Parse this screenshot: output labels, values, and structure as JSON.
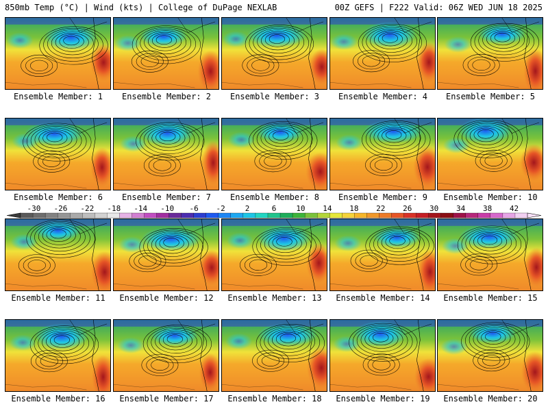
{
  "header": {
    "left": "850mb Temp (°C) | Wind (kts) | College of DuPage NEXLAB",
    "right": "00Z GEFS | F222 Valid: 06Z WED JUN 18 2025"
  },
  "panels": [
    {
      "caption": "Ensemble Member: 1"
    },
    {
      "caption": "Ensemble Member: 2"
    },
    {
      "caption": "Ensemble Member: 3"
    },
    {
      "caption": "Ensemble Member: 4"
    },
    {
      "caption": "Ensemble Member: 5"
    },
    {
      "caption": "Ensemble Member: 6"
    },
    {
      "caption": "Ensemble Member: 7"
    },
    {
      "caption": "Ensemble Member: 8"
    },
    {
      "caption": "Ensemble Member: 9"
    },
    {
      "caption": "Ensemble Member: 10"
    },
    {
      "caption": "Ensemble Member: 11"
    },
    {
      "caption": "Ensemble Member: 12"
    },
    {
      "caption": "Ensemble Member: 13"
    },
    {
      "caption": "Ensemble Member: 14"
    },
    {
      "caption": "Ensemble Member: 15"
    },
    {
      "caption": "Ensemble Member: 16"
    },
    {
      "caption": "Ensemble Member: 17"
    },
    {
      "caption": "Ensemble Member: 18"
    },
    {
      "caption": "Ensemble Member: 19"
    },
    {
      "caption": "Ensemble Member: 20"
    }
  ],
  "colorbar": {
    "labels": [
      "-30",
      "-26",
      "-22",
      "-18",
      "-14",
      "-10",
      "-6",
      "-2",
      "2",
      "6",
      "10",
      "14",
      "18",
      "22",
      "26",
      "30",
      "34",
      "38",
      "42"
    ],
    "colors": [
      "#5a5a5a",
      "#6e6e6e",
      "#828282",
      "#969696",
      "#aaaaaa",
      "#bebebe",
      "#d2d2d2",
      "#e8e8e8",
      "#e6b3e6",
      "#d27fd2",
      "#c14ec1",
      "#a12ea1",
      "#6a2a9a",
      "#4b2cb0",
      "#2d3ed0",
      "#1e5af0",
      "#1d86f5",
      "#1ea8f2",
      "#1ec6e6",
      "#22d6c2",
      "#20c48c",
      "#1ead5a",
      "#3cb43a",
      "#7ac23a",
      "#b4d63a",
      "#e6e83a",
      "#f5d33a",
      "#f5b52a",
      "#f0982a",
      "#ec7a28",
      "#e65526",
      "#d83226",
      "#c41e24",
      "#a4161c",
      "#8a0e14",
      "#9e1248",
      "#b6287a",
      "#c83ca8",
      "#d668cc",
      "#e6a4e6",
      "#f2d0f2"
    ],
    "left_color": "#3a3a3a",
    "right_color": "#f8e0f8"
  }
}
